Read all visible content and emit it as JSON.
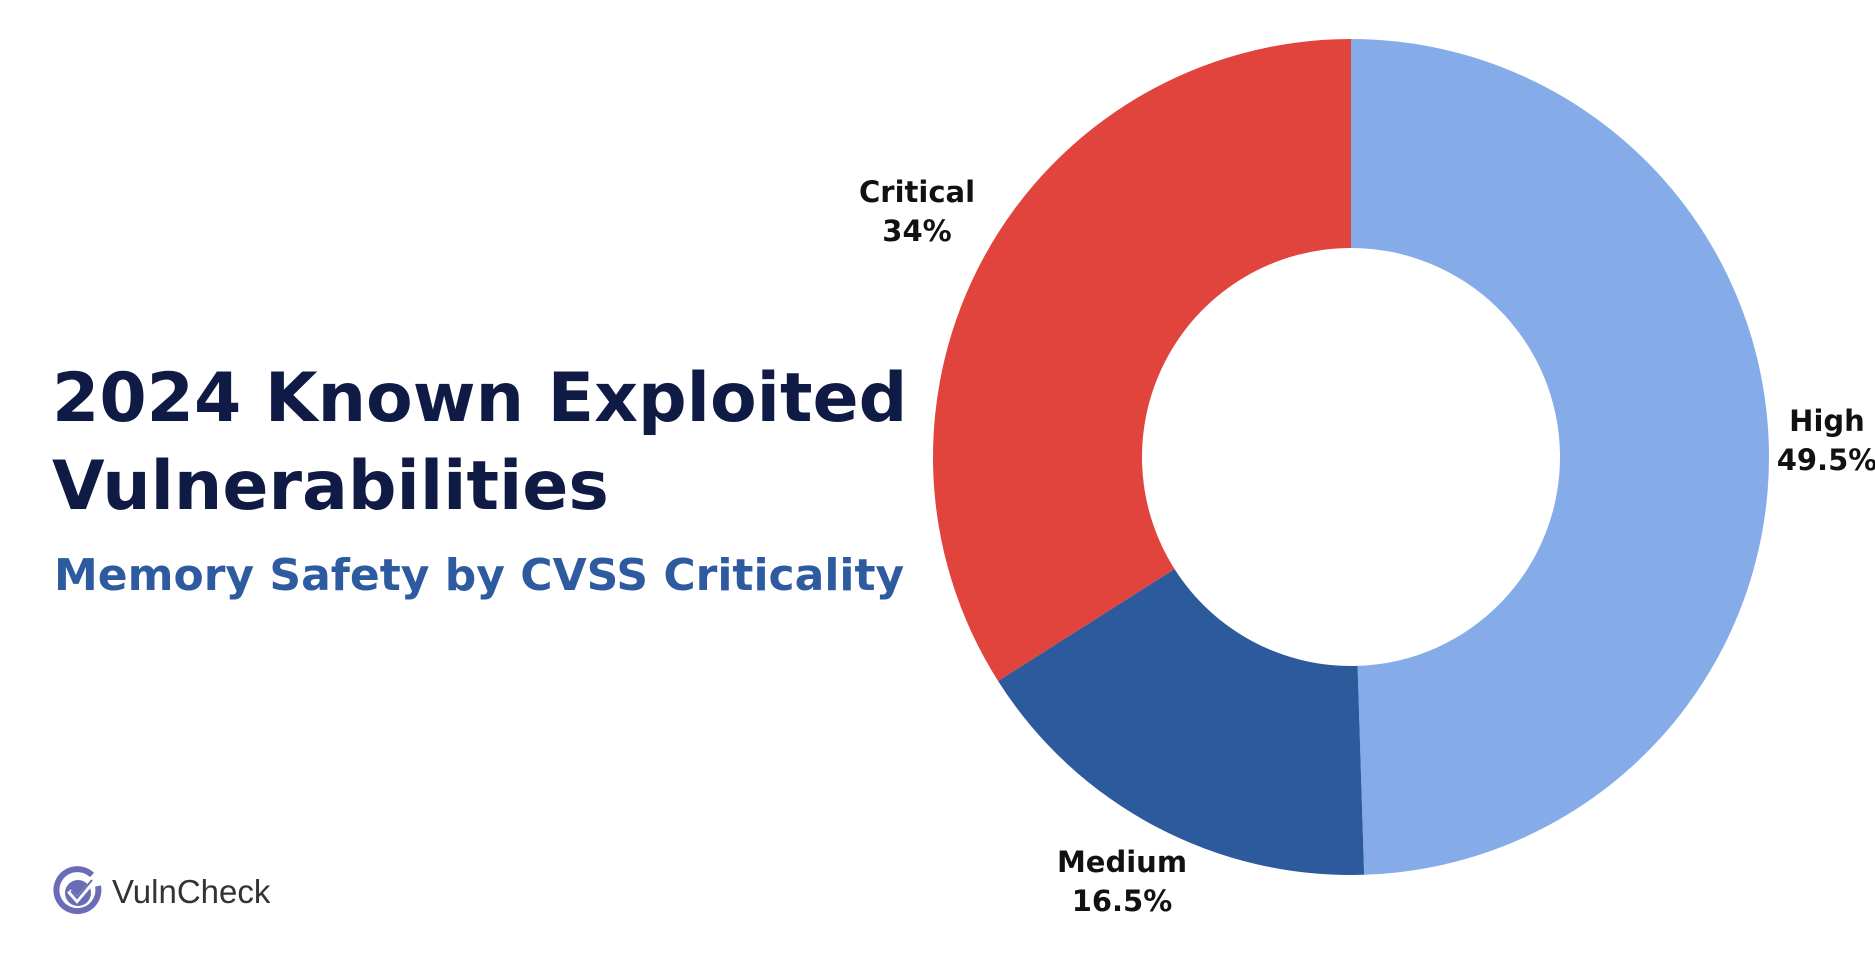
{
  "title_line1": "2024 Known Exploited",
  "title_line2": "Vulnerabilities",
  "subtitle": "Memory Safety by CVSS Criticality",
  "logo": {
    "text": "VulnCheck",
    "icon": "check-shield-icon",
    "color": "#6a6db5"
  },
  "chart_data": {
    "type": "pie",
    "donut": true,
    "start": "top, clockwise",
    "slices": [
      {
        "label": "High",
        "value": 49.5,
        "display": "49.5%",
        "color": "#85ace8"
      },
      {
        "label": "Medium",
        "value": 16.5,
        "display": "16.5%",
        "color": "#2d5a9c"
      },
      {
        "label": "Critical",
        "value": 34,
        "display": "34%",
        "color": "#e0443c"
      }
    ]
  }
}
